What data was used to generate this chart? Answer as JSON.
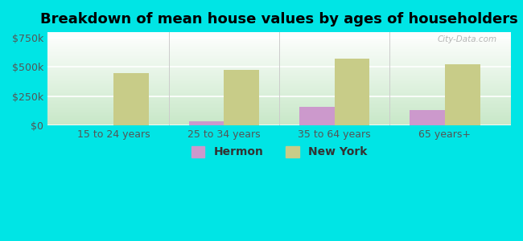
{
  "title": "Breakdown of mean house values by ages of householders",
  "categories": [
    "15 to 24 years",
    "25 to 34 years",
    "35 to 64 years",
    "65 years+"
  ],
  "hermon": [
    0,
    35000,
    160000,
    130000
  ],
  "newyork": [
    450000,
    475000,
    575000,
    525000
  ],
  "hermon_color": "#cc99cc",
  "newyork_color": "#c8cc88",
  "background_color": "#00e5e5",
  "ylabel_ticks": [
    0,
    250000,
    500000,
    750000
  ],
  "ylabel_labels": [
    "$0",
    "$250k",
    "$500k",
    "$750k"
  ],
  "ylim": [
    0,
    800000
  ],
  "legend_hermon": "Hermon",
  "legend_newyork": "New York",
  "title_fontsize": 13,
  "watermark": "City-Data.com",
  "bar_width": 0.32
}
